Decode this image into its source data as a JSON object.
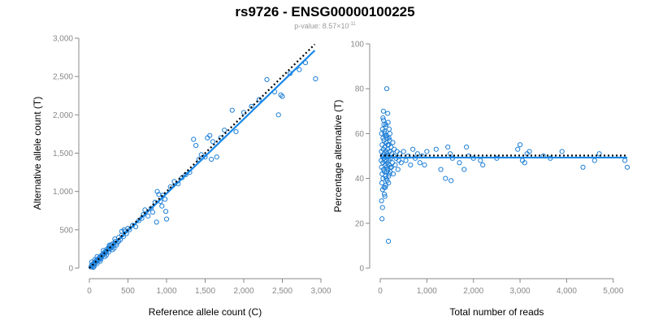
{
  "title": "rs9726 - ENSG00000100225",
  "subtitle": {
    "prefix": "p-value: 8.57",
    "times": "×10",
    "exponent": "-11"
  },
  "colors": {
    "points": "#1f7fd6",
    "fit": "#1a88e8",
    "reference": "#000000",
    "axis": "#888888"
  },
  "chart_data": [
    {
      "type": "scatter",
      "xlabel": "Reference allele count (C)",
      "ylabel": "Alternative allele count (T)",
      "xlim": [
        0,
        3000
      ],
      "ylim": [
        0,
        3000
      ],
      "xticks": [
        "0",
        "500",
        "1,000",
        "1,500",
        "2,000",
        "2,500",
        "3,000"
      ],
      "yticks": [
        "0",
        "500",
        "1,000",
        "1,500",
        "2,000",
        "2,500",
        "3,000"
      ],
      "xtick_values": [
        0,
        500,
        1000,
        1500,
        2000,
        2500,
        3000
      ],
      "ytick_values": [
        0,
        500,
        1000,
        1500,
        2000,
        2500,
        3000
      ],
      "fit_line": {
        "x": [
          0,
          2920
        ],
        "y": [
          0,
          2840
        ]
      },
      "reference_line": {
        "x": [
          0,
          2920
        ],
        "y": [
          0,
          2920
        ]
      },
      "points": [
        [
          20,
          15
        ],
        [
          30,
          40
        ],
        [
          40,
          25
        ],
        [
          50,
          60
        ],
        [
          60,
          50
        ],
        [
          70,
          80
        ],
        [
          80,
          70
        ],
        [
          90,
          100
        ],
        [
          100,
          90
        ],
        [
          110,
          120
        ],
        [
          120,
          105
        ],
        [
          130,
          140
        ],
        [
          140,
          130
        ],
        [
          150,
          160
        ],
        [
          160,
          150
        ],
        [
          170,
          180
        ],
        [
          180,
          170
        ],
        [
          190,
          200
        ],
        [
          200,
          190
        ],
        [
          210,
          220
        ],
        [
          220,
          210
        ],
        [
          230,
          250
        ],
        [
          240,
          235
        ],
        [
          250,
          270
        ],
        [
          260,
          255
        ],
        [
          270,
          290
        ],
        [
          280,
          260
        ],
        [
          290,
          310
        ],
        [
          300,
          280
        ],
        [
          310,
          320
        ],
        [
          320,
          300
        ],
        [
          340,
          350
        ],
        [
          360,
          330
        ],
        [
          380,
          400
        ],
        [
          400,
          370
        ],
        [
          420,
          430
        ],
        [
          440,
          410
        ],
        [
          460,
          480
        ],
        [
          480,
          450
        ],
        [
          500,
          520
        ],
        [
          30,
          80
        ],
        [
          60,
          20
        ],
        [
          100,
          150
        ],
        [
          140,
          90
        ],
        [
          180,
          230
        ],
        [
          220,
          170
        ],
        [
          260,
          300
        ],
        [
          320,
          260
        ],
        [
          380,
          350
        ],
        [
          420,
          480
        ],
        [
          100,
          60
        ],
        [
          200,
          150
        ],
        [
          300,
          240
        ],
        [
          350,
          300
        ],
        [
          450,
          500
        ],
        [
          50,
          10
        ],
        [
          70,
          110
        ],
        [
          150,
          120
        ],
        [
          250,
          210
        ],
        [
          330,
          380
        ],
        [
          520,
          500
        ],
        [
          560,
          560
        ],
        [
          600,
          540
        ],
        [
          640,
          620
        ],
        [
          680,
          650
        ],
        [
          700,
          700
        ],
        [
          720,
          760
        ],
        [
          760,
          680
        ],
        [
          800,
          780
        ],
        [
          820,
          730
        ],
        [
          850,
          860
        ],
        [
          880,
          1000
        ],
        [
          900,
          960
        ],
        [
          920,
          870
        ],
        [
          950,
          950
        ],
        [
          980,
          900
        ],
        [
          990,
          740
        ],
        [
          1000,
          640
        ],
        [
          940,
          810
        ],
        [
          870,
          600
        ],
        [
          1050,
          1060
        ],
        [
          1100,
          1130
        ],
        [
          1150,
          1100
        ],
        [
          1200,
          1180
        ],
        [
          1250,
          1220
        ],
        [
          1300,
          1250
        ],
        [
          1350,
          1680
        ],
        [
          1380,
          1600
        ],
        [
          1420,
          1420
        ],
        [
          1450,
          1480
        ],
        [
          1500,
          1450
        ],
        [
          1530,
          1700
        ],
        [
          1560,
          1730
        ],
        [
          1580,
          1420
        ],
        [
          1600,
          1650
        ],
        [
          1650,
          1450
        ],
        [
          1700,
          1700
        ],
        [
          1750,
          1800
        ],
        [
          1850,
          2060
        ],
        [
          1900,
          1780
        ],
        [
          2000,
          2030
        ],
        [
          2100,
          2110
        ],
        [
          2200,
          2200
        ],
        [
          2300,
          2460
        ],
        [
          2400,
          2300
        ],
        [
          2450,
          2000
        ],
        [
          2480,
          2260
        ],
        [
          2500,
          2240
        ],
        [
          2600,
          2540
        ],
        [
          2720,
          2590
        ],
        [
          2800,
          2680
        ],
        [
          2930,
          2470
        ]
      ]
    },
    {
      "type": "scatter",
      "xlabel": "Total number of reads",
      "ylabel": "Percentage alternative (T)",
      "xlim": [
        0,
        5300
      ],
      "ylim": [
        0,
        100
      ],
      "xticks": [
        "0",
        "1,000",
        "2,000",
        "3,000",
        "4,000",
        "5,000"
      ],
      "yticks": [
        "0",
        "20",
        "40",
        "60",
        "80",
        "100"
      ],
      "xtick_values": [
        0,
        1000,
        2000,
        3000,
        4000,
        5000
      ],
      "ytick_values": [
        0,
        20,
        40,
        60,
        80,
        100
      ],
      "fit_line": {
        "x": [
          0,
          5300
        ],
        "y": [
          49.3,
          49.3
        ]
      },
      "reference_line": {
        "x": [
          0,
          5300
        ],
        "y": [
          50.2,
          50.2
        ]
      },
      "points": [
        [
          20,
          48
        ],
        [
          25,
          52
        ],
        [
          30,
          45
        ],
        [
          30,
          60
        ],
        [
          35,
          38
        ],
        [
          40,
          55
        ],
        [
          40,
          42
        ],
        [
          45,
          50
        ],
        [
          50,
          62
        ],
        [
          50,
          35
        ],
        [
          55,
          47
        ],
        [
          60,
          58
        ],
        [
          60,
          40
        ],
        [
          65,
          53
        ],
        [
          70,
          44
        ],
        [
          70,
          66
        ],
        [
          75,
          49
        ],
        [
          80,
          57
        ],
        [
          80,
          36
        ],
        [
          85,
          51
        ],
        [
          90,
          43
        ],
        [
          90,
          61
        ],
        [
          95,
          48
        ],
        [
          100,
          54
        ],
        [
          100,
          32
        ],
        [
          105,
          46
        ],
        [
          110,
          59
        ],
        [
          110,
          41
        ],
        [
          115,
          50
        ],
        [
          120,
          64
        ],
        [
          120,
          37
        ],
        [
          125,
          52
        ],
        [
          130,
          45
        ],
        [
          130,
          56
        ],
        [
          135,
          48
        ],
        [
          140,
          80
        ],
        [
          140,
          43
        ],
        [
          145,
          51
        ],
        [
          150,
          58
        ],
        [
          150,
          39
        ],
        [
          155,
          47
        ],
        [
          160,
          53
        ],
        [
          160,
          69
        ],
        [
          165,
          44
        ],
        [
          170,
          50
        ],
        [
          175,
          12
        ],
        [
          180,
          55
        ],
        [
          180,
          41
        ],
        [
          185,
          48
        ],
        [
          190,
          62
        ],
        [
          195,
          46
        ],
        [
          200,
          52
        ],
        [
          200,
          57
        ],
        [
          210,
          43
        ],
        [
          220,
          49
        ],
        [
          230,
          54
        ],
        [
          240,
          45
        ],
        [
          250,
          51
        ],
        [
          260,
          47
        ],
        [
          270,
          56
        ],
        [
          280,
          42
        ],
        [
          290,
          50
        ],
        [
          300,
          53
        ],
        [
          320,
          46
        ],
        [
          340,
          49
        ],
        [
          360,
          52
        ],
        [
          380,
          44
        ],
        [
          400,
          48
        ],
        [
          420,
          51
        ],
        [
          450,
          47
        ],
        [
          28,
          30
        ],
        [
          38,
          22
        ],
        [
          48,
          27
        ],
        [
          58,
          67
        ],
        [
          68,
          70
        ],
        [
          78,
          64
        ],
        [
          88,
          33
        ],
        [
          98,
          60
        ],
        [
          108,
          36
        ],
        [
          118,
          63
        ],
        [
          128,
          40
        ],
        [
          138,
          59
        ],
        [
          148,
          44
        ],
        [
          158,
          55
        ],
        [
          168,
          65
        ],
        [
          178,
          38
        ],
        [
          188,
          58
        ],
        [
          198,
          42
        ],
        [
          208,
          60
        ],
        [
          218,
          45
        ],
        [
          500,
          52
        ],
        [
          550,
          48
        ],
        [
          600,
          50
        ],
        [
          650,
          46
        ],
        [
          700,
          53
        ],
        [
          750,
          49
        ],
        [
          800,
          51
        ],
        [
          850,
          47
        ],
        [
          900,
          50
        ],
        [
          950,
          46
        ],
        [
          1000,
          52
        ],
        [
          1450,
          54
        ],
        [
          1500,
          51
        ],
        [
          1550,
          49
        ],
        [
          1700,
          47
        ],
        [
          1850,
          54
        ],
        [
          1900,
          50
        ],
        [
          1400,
          40
        ],
        [
          1520,
          39
        ],
        [
          1800,
          44
        ],
        [
          2000,
          49
        ],
        [
          2150,
          48
        ],
        [
          2200,
          46
        ],
        [
          2950,
          53
        ],
        [
          3000,
          55
        ],
        [
          3050,
          48
        ],
        [
          3100,
          47
        ],
        [
          3150,
          51
        ],
        [
          3200,
          52
        ],
        [
          3650,
          49
        ],
        [
          3900,
          52
        ],
        [
          4350,
          45
        ],
        [
          4600,
          48
        ],
        [
          4700,
          51
        ],
        [
          5250,
          48
        ],
        [
          5300,
          45
        ],
        [
          1200,
          53
        ],
        [
          1300,
          44
        ],
        [
          2500,
          49
        ],
        [
          3500,
          50
        ]
      ]
    }
  ]
}
